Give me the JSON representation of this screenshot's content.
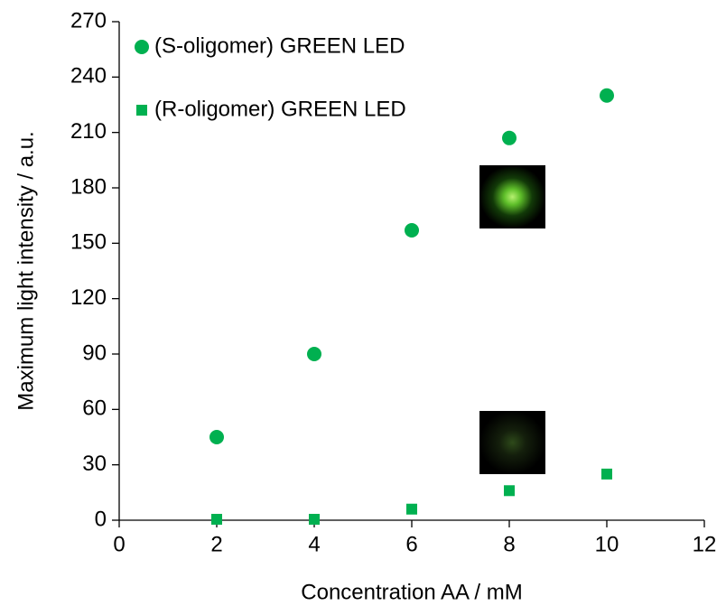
{
  "chart_data": {
    "type": "scatter",
    "xlabel": "Concentration AA / mM",
    "ylabel": "Maximum light intensity / a.u.",
    "xlim": [
      0,
      12
    ],
    "xticks": [
      0,
      2,
      4,
      6,
      8,
      10,
      12
    ],
    "ylim": [
      0,
      270
    ],
    "yticks": [
      0,
      30,
      60,
      90,
      120,
      150,
      180,
      210,
      240,
      270
    ],
    "legend": "upper-left",
    "series": [
      {
        "name": "(S-oligomer) GREEN LED",
        "color": "#00b050",
        "marker": "circle",
        "x": [
          2,
          4,
          6,
          8,
          10
        ],
        "values": [
          45,
          90,
          157,
          207,
          230
        ]
      },
      {
        "name": "(R-oligomer) GREEN LED",
        "color": "#00b050",
        "marker": "square",
        "x": [
          2,
          4,
          6,
          8,
          10
        ],
        "values": [
          0.5,
          0.5,
          6,
          16,
          25
        ]
      }
    ]
  }
}
